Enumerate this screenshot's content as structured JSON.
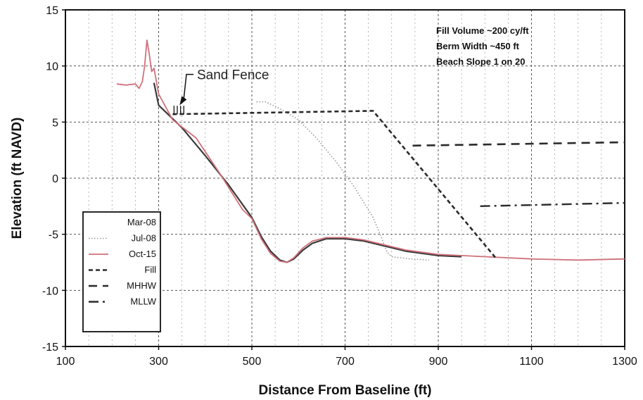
{
  "chart_data": {
    "type": "line",
    "title": "",
    "xlabel": "Distance From Baseline (ft)",
    "ylabel": "Elevation (ft NAVD)",
    "xlim": [
      100,
      1300
    ],
    "ylim": [
      -15,
      15
    ],
    "xticks": [
      100,
      300,
      500,
      700,
      900,
      1100,
      1300
    ],
    "yticks": [
      15,
      10,
      5,
      0,
      -5,
      -10,
      -15
    ],
    "grid": true,
    "legend_position": "lower-left",
    "annotations": {
      "notes": [
        "Fill Volume ~200 cy/ft",
        "Berm Width ~450 ft",
        "Beach Slope 1 on 20"
      ],
      "callout": "Sand Fence",
      "callout_point": [
        345,
        6.5
      ],
      "callout_text_at": [
        420,
        9.5
      ]
    },
    "series": [
      {
        "name": "Mar-08",
        "style": "solid",
        "color": "#3a3a3a",
        "x": [
          290,
          300,
          350,
          400,
          450,
          500,
          520,
          540,
          560,
          575,
          590,
          610,
          630,
          660,
          700,
          740,
          780,
          830,
          900,
          950
        ],
        "y": [
          8.5,
          6.5,
          4.5,
          2.0,
          -0.6,
          -3.5,
          -5.2,
          -6.5,
          -7.3,
          -7.5,
          -7.2,
          -6.4,
          -5.8,
          -5.4,
          -5.4,
          -5.6,
          -6.0,
          -6.5,
          -6.9,
          -7.0
        ]
      },
      {
        "name": "Jul-08",
        "style": "dotted",
        "color": "#9a9a9a",
        "x": [
          510,
          530,
          560,
          600,
          640,
          680,
          720,
          760,
          780,
          790,
          800,
          840,
          880
        ],
        "y": [
          6.8,
          6.8,
          6.2,
          5.2,
          3.5,
          1.5,
          -0.8,
          -3.5,
          -5.5,
          -6.6,
          -7.0,
          -7.2,
          -7.3
        ]
      },
      {
        "name": "Oct-15",
        "style": "solid",
        "color": "#d0707a",
        "x": [
          210,
          230,
          250,
          258,
          265,
          270,
          275,
          280,
          285,
          290,
          300,
          330,
          380,
          430,
          480,
          500,
          520,
          540,
          560,
          575,
          590,
          610,
          630,
          660,
          700,
          740,
          780,
          830,
          900,
          1000,
          1100,
          1200,
          1300
        ],
        "y": [
          8.4,
          8.3,
          8.4,
          8.0,
          8.6,
          10.0,
          12.3,
          11.0,
          9.5,
          9.8,
          7.5,
          5.2,
          3.6,
          0.5,
          -2.8,
          -3.6,
          -5.4,
          -6.7,
          -7.4,
          -7.5,
          -7.1,
          -6.2,
          -5.6,
          -5.3,
          -5.3,
          -5.5,
          -5.9,
          -6.4,
          -6.8,
          -7.0,
          -7.2,
          -7.3,
          -7.2
        ]
      },
      {
        "name": "Fill",
        "style": "dashed-short",
        "color": "#2a2a2a",
        "x": [
          330,
          760,
          1025
        ],
        "y": [
          5.7,
          6.0,
          -7.2
        ]
      },
      {
        "name": "MHHW",
        "style": "dashed-long",
        "color": "#2a2a2a",
        "x": [
          845,
          1300
        ],
        "y": [
          2.9,
          3.2
        ]
      },
      {
        "name": "MLLW",
        "style": "dash-dot",
        "color": "#2a2a2a",
        "x": [
          990,
          1300
        ],
        "y": [
          -2.5,
          -2.2
        ]
      }
    ]
  }
}
